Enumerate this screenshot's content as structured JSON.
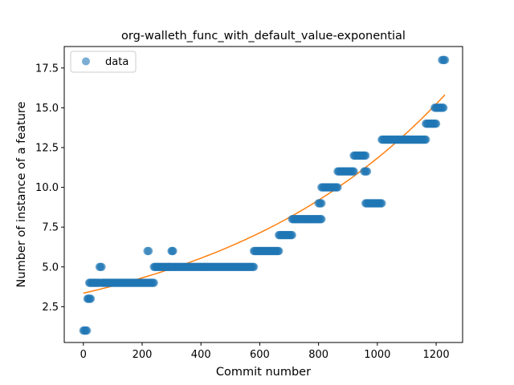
{
  "chart_data": {
    "type": "scatter",
    "title": "org-walleth_func_with_default_value-exponential",
    "xlabel": "Commit number",
    "ylabel": "Number of instance of a feature",
    "xlim": [
      -65,
      1290
    ],
    "ylim": [
      0.25,
      18.85
    ],
    "xticks": [
      0,
      200,
      400,
      600,
      800,
      1000,
      1200
    ],
    "yticks": [
      2.5,
      5.0,
      7.5,
      10.0,
      12.5,
      15.0,
      17.5
    ],
    "xtick_labels": [
      "0",
      "200",
      "400",
      "600",
      "800",
      "1000",
      "1200"
    ],
    "ytick_labels": [
      "2.5",
      "5.0",
      "7.5",
      "10.0",
      "12.5",
      "15.0",
      "17.5"
    ],
    "legend": {
      "placement": "upper-left",
      "entries": [
        "data"
      ]
    },
    "grid": false,
    "colors": {
      "data": "#1f77b4",
      "fit": "#ff7f0e"
    },
    "series": [
      {
        "name": "data",
        "kind": "scatter",
        "segments": [
          {
            "x0": 0,
            "x1": 12,
            "y": 1
          },
          {
            "x0": 14,
            "x1": 25,
            "y": 3
          },
          {
            "x0": 20,
            "x1": 55,
            "y": 4
          },
          {
            "x0": 55,
            "x1": 62,
            "y": 5
          },
          {
            "x0": 62,
            "x1": 240,
            "y": 4
          },
          {
            "x0": 218,
            "x1": 222,
            "y": 6
          },
          {
            "x0": 240,
            "x1": 290,
            "y": 5
          },
          {
            "x0": 300,
            "x1": 305,
            "y": 6
          },
          {
            "x0": 290,
            "x1": 580,
            "y": 5
          },
          {
            "x0": 580,
            "x1": 665,
            "y": 6
          },
          {
            "x0": 665,
            "x1": 710,
            "y": 7
          },
          {
            "x0": 710,
            "x1": 810,
            "y": 8
          },
          {
            "x0": 800,
            "x1": 810,
            "y": 9
          },
          {
            "x0": 810,
            "x1": 865,
            "y": 10
          },
          {
            "x0": 865,
            "x1": 920,
            "y": 11
          },
          {
            "x0": 920,
            "x1": 960,
            "y": 12
          },
          {
            "x0": 955,
            "x1": 965,
            "y": 11
          },
          {
            "x0": 960,
            "x1": 1015,
            "y": 9
          },
          {
            "x0": 1015,
            "x1": 1165,
            "y": 13
          },
          {
            "x0": 1165,
            "x1": 1200,
            "y": 14
          },
          {
            "x0": 1195,
            "x1": 1225,
            "y": 15
          },
          {
            "x0": 1220,
            "x1": 1230,
            "y": 18
          }
        ]
      },
      {
        "name": "fit",
        "kind": "line",
        "model": "exponential",
        "a": 3.35,
        "b": 0.001262,
        "x_range": [
          0,
          1230
        ]
      }
    ]
  }
}
